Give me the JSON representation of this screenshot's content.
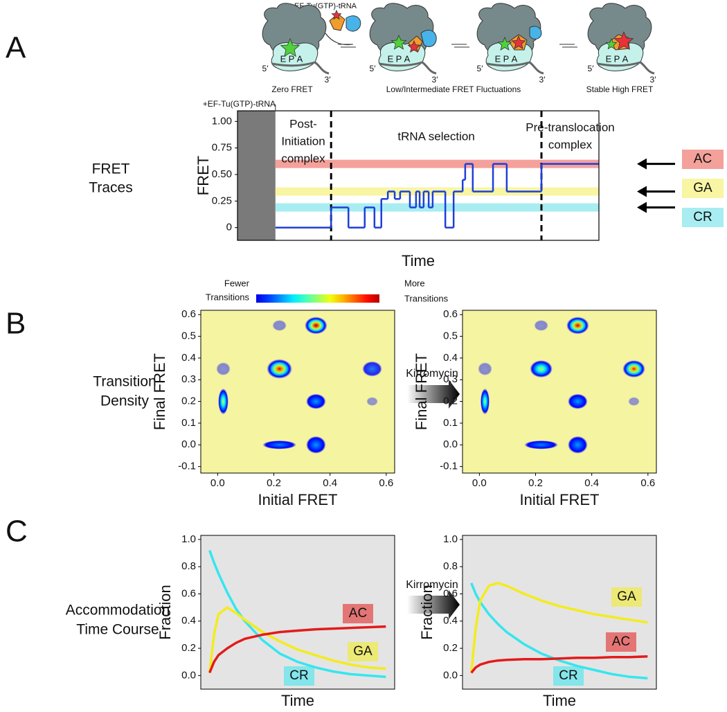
{
  "panel_labels": [
    "A",
    "B",
    "C"
  ],
  "row_labels": [
    [
      "FRET",
      "Traces"
    ],
    [
      "Transition",
      "Density"
    ],
    [
      "Accommodation",
      "Time Course"
    ]
  ],
  "schematic": {
    "reagent": "EF-Tu(GTP)-tRNA",
    "states": [
      "Zero FRET",
      "Low/Intermediate FRET Fluctuations",
      "Stable High FRET"
    ],
    "sites": [
      "E",
      "P",
      "A"
    ],
    "ends": [
      "5′",
      "3′"
    ]
  },
  "treatment": "Kirromycin",
  "colorbar": {
    "low": [
      "Fewer",
      "Transitions"
    ],
    "high": [
      "More",
      "Transitions"
    ]
  },
  "chart_data": [
    {
      "type": "step",
      "annotation": "+EF-Tu(GTP)-tRNA",
      "ylabel": "FRET",
      "xlabel": "Time",
      "xlim": [
        0,
        100
      ],
      "ylim": [
        -0.12,
        1.1
      ],
      "yticks": [
        0,
        0.25,
        {
          "value": 0.5,
          "label": "0.50"
        },
        0.75,
        {
          "value": 1,
          "label": "1.00"
        }
      ],
      "shaded_until": 10.5,
      "dividers": [
        25.9,
        84.1
      ],
      "regions": [
        [
          "Post-",
          "Initiation",
          "complex"
        ],
        [
          "tRNA selection"
        ],
        [
          "Pre-translocation",
          "complex"
        ]
      ],
      "bands": [
        {
          "name": "AC",
          "value": 0.6,
          "color": "#f4a19b"
        },
        {
          "name": "GA",
          "value": 0.34,
          "color": "#f8f5a3"
        },
        {
          "name": "CR",
          "value": 0.19,
          "color": "#a8edf1"
        }
      ],
      "color": "#1d3fd8",
      "x": [
        10.5,
        25.9,
        30.7,
        35.2,
        37.9,
        39.8,
        41.6,
        43.5,
        45.0,
        47.7,
        49.4,
        50.4,
        51.5,
        52.9,
        54.0,
        57.5,
        59.8,
        62.3,
        63.0,
        65.1,
        70.7,
        74.5,
        84.1
      ],
      "values": [
        0,
        0.19,
        0,
        0.19,
        0,
        0.27,
        0.34,
        0.27,
        0.34,
        0.19,
        0.34,
        0.19,
        0.34,
        0.19,
        0.34,
        0,
        0.34,
        0.45,
        0.6,
        0.34,
        0.6,
        0.34,
        0.6
      ]
    },
    {
      "type": "density",
      "xlabel": "Initial FRET",
      "ylabel": "Final FRET",
      "xlim": [
        -0.06,
        0.63
      ],
      "ylim": [
        -0.13,
        0.62
      ],
      "xticks": [
        {
          "value": 0,
          "label": "0.0"
        },
        0.2,
        0.4,
        0.6
      ],
      "yticks": [
        -0.1,
        {
          "value": 0,
          "label": "0.0"
        },
        0.1,
        0.2,
        0.3,
        0.4,
        0.5,
        0.6
      ],
      "background": "#f5f4a0",
      "peaks": [
        {
          "x": 0.02,
          "y": 0.2,
          "rx": 0.018,
          "ry": 0.06,
          "intensity": 0.5
        },
        {
          "x": 0.02,
          "y": 0.35,
          "rx": 0.025,
          "ry": 0.03,
          "intensity": 0.04
        },
        {
          "x": 0.22,
          "y": 0.55,
          "rx": 0.025,
          "ry": 0.025,
          "intensity": 0.04
        },
        {
          "x": 0.35,
          "y": 0.55,
          "rx": 0.04,
          "ry": 0.04,
          "intensity": 1
        },
        {
          "x": 0.22,
          "y": 0.35,
          "rx": 0.045,
          "ry": 0.045,
          "intensity": 0.92
        },
        {
          "x": 0.55,
          "y": 0.35,
          "rx": 0.035,
          "ry": 0.035,
          "intensity": 0.12
        },
        {
          "x": 0.35,
          "y": 0.2,
          "rx": 0.035,
          "ry": 0.035,
          "intensity": 0.18
        },
        {
          "x": 0.55,
          "y": 0.2,
          "rx": 0.02,
          "ry": 0.02,
          "intensity": 0.03
        },
        {
          "x": 0.22,
          "y": 0.0,
          "rx": 0.06,
          "ry": 0.02,
          "intensity": 0.15
        },
        {
          "x": 0.35,
          "y": 0.0,
          "rx": 0.035,
          "ry": 0.04,
          "intensity": 0.18
        }
      ]
    },
    {
      "type": "density",
      "xlabel": "Initial FRET",
      "ylabel": "Final FRET",
      "xlim": [
        -0.06,
        0.63
      ],
      "ylim": [
        -0.13,
        0.62
      ],
      "xticks": [
        {
          "value": 0,
          "label": "0.0"
        },
        0.2,
        0.4,
        0.6
      ],
      "yticks": [
        -0.1,
        {
          "value": 0,
          "label": "0.0"
        },
        0.1,
        0.2,
        0.3,
        0.4,
        0.5,
        0.6
      ],
      "background": "#f5f4a0",
      "peaks": [
        {
          "x": 0.02,
          "y": 0.2,
          "rx": 0.016,
          "ry": 0.06,
          "intensity": 0.45
        },
        {
          "x": 0.02,
          "y": 0.35,
          "rx": 0.025,
          "ry": 0.03,
          "intensity": 0.04
        },
        {
          "x": 0.22,
          "y": 0.55,
          "rx": 0.025,
          "ry": 0.025,
          "intensity": 0.04
        },
        {
          "x": 0.35,
          "y": 0.55,
          "rx": 0.04,
          "ry": 0.04,
          "intensity": 0.95
        },
        {
          "x": 0.22,
          "y": 0.35,
          "rx": 0.04,
          "ry": 0.04,
          "intensity": 0.5
        },
        {
          "x": 0.55,
          "y": 0.35,
          "rx": 0.04,
          "ry": 0.04,
          "intensity": 0.88
        },
        {
          "x": 0.35,
          "y": 0.2,
          "rx": 0.035,
          "ry": 0.035,
          "intensity": 0.18
        },
        {
          "x": 0.55,
          "y": 0.2,
          "rx": 0.02,
          "ry": 0.02,
          "intensity": 0.03
        },
        {
          "x": 0.22,
          "y": 0.0,
          "rx": 0.06,
          "ry": 0.02,
          "intensity": 0.15
        },
        {
          "x": 0.35,
          "y": 0.0,
          "rx": 0.035,
          "ry": 0.04,
          "intensity": 0.18
        }
      ]
    },
    {
      "type": "line",
      "xlabel": "Time",
      "ylabel": "Fraction",
      "xlim": [
        -0.5,
        10.5
      ],
      "ylim": [
        -0.1,
        1.03
      ],
      "yticks": [
        {
          "value": 0,
          "label": "0.0"
        },
        0.2,
        0.4,
        0.6,
        0.8,
        {
          "value": 1,
          "label": "1.0"
        }
      ],
      "background": "#e4e4e4",
      "x": [
        0,
        0.25,
        0.5,
        1,
        1.5,
        2,
        3,
        4,
        5,
        6,
        7,
        8,
        9,
        10
      ],
      "series": [
        {
          "name": "CR",
          "color": "#35e6ef",
          "values": [
            0.92,
            0.83,
            0.75,
            0.61,
            0.49,
            0.4,
            0.26,
            0.16,
            0.1,
            0.06,
            0.03,
            0.01,
            0.0,
            -0.01
          ]
        },
        {
          "name": "GA",
          "color": "#f3ec1c",
          "values": [
            0.02,
            0.3,
            0.45,
            0.5,
            0.46,
            0.41,
            0.32,
            0.25,
            0.19,
            0.15,
            0.11,
            0.08,
            0.06,
            0.05
          ]
        },
        {
          "name": "AC",
          "color": "#e41a1a",
          "values": [
            0.02,
            0.1,
            0.15,
            0.2,
            0.24,
            0.27,
            0.3,
            0.32,
            0.33,
            0.34,
            0.345,
            0.35,
            0.355,
            0.36
          ]
        }
      ]
    },
    {
      "type": "line",
      "xlabel": "Time",
      "ylabel": "Fraction",
      "xlim": [
        -0.5,
        10.5
      ],
      "ylim": [
        -0.1,
        1.03
      ],
      "yticks": [
        {
          "value": 0,
          "label": "0.0"
        },
        0.2,
        0.4,
        0.6,
        0.8,
        {
          "value": 1,
          "label": "1.0"
        }
      ],
      "background": "#e4e4e4",
      "x": [
        0,
        0.25,
        0.5,
        1,
        1.5,
        2,
        3,
        4,
        5,
        6,
        7,
        8,
        9,
        10
      ],
      "series": [
        {
          "name": "CR",
          "color": "#35e6ef",
          "values": [
            0.68,
            0.6,
            0.54,
            0.45,
            0.38,
            0.32,
            0.23,
            0.16,
            0.11,
            0.07,
            0.04,
            0.01,
            -0.01,
            -0.02
          ]
        },
        {
          "name": "GA",
          "color": "#f3ec1c",
          "values": [
            0.02,
            0.35,
            0.55,
            0.66,
            0.68,
            0.66,
            0.6,
            0.55,
            0.51,
            0.48,
            0.45,
            0.43,
            0.41,
            0.39
          ]
        },
        {
          "name": "AC",
          "color": "#e41a1a",
          "values": [
            0.02,
            0.06,
            0.08,
            0.1,
            0.11,
            0.115,
            0.12,
            0.12,
            0.125,
            0.13,
            0.13,
            0.135,
            0.135,
            0.14
          ]
        }
      ]
    }
  ]
}
